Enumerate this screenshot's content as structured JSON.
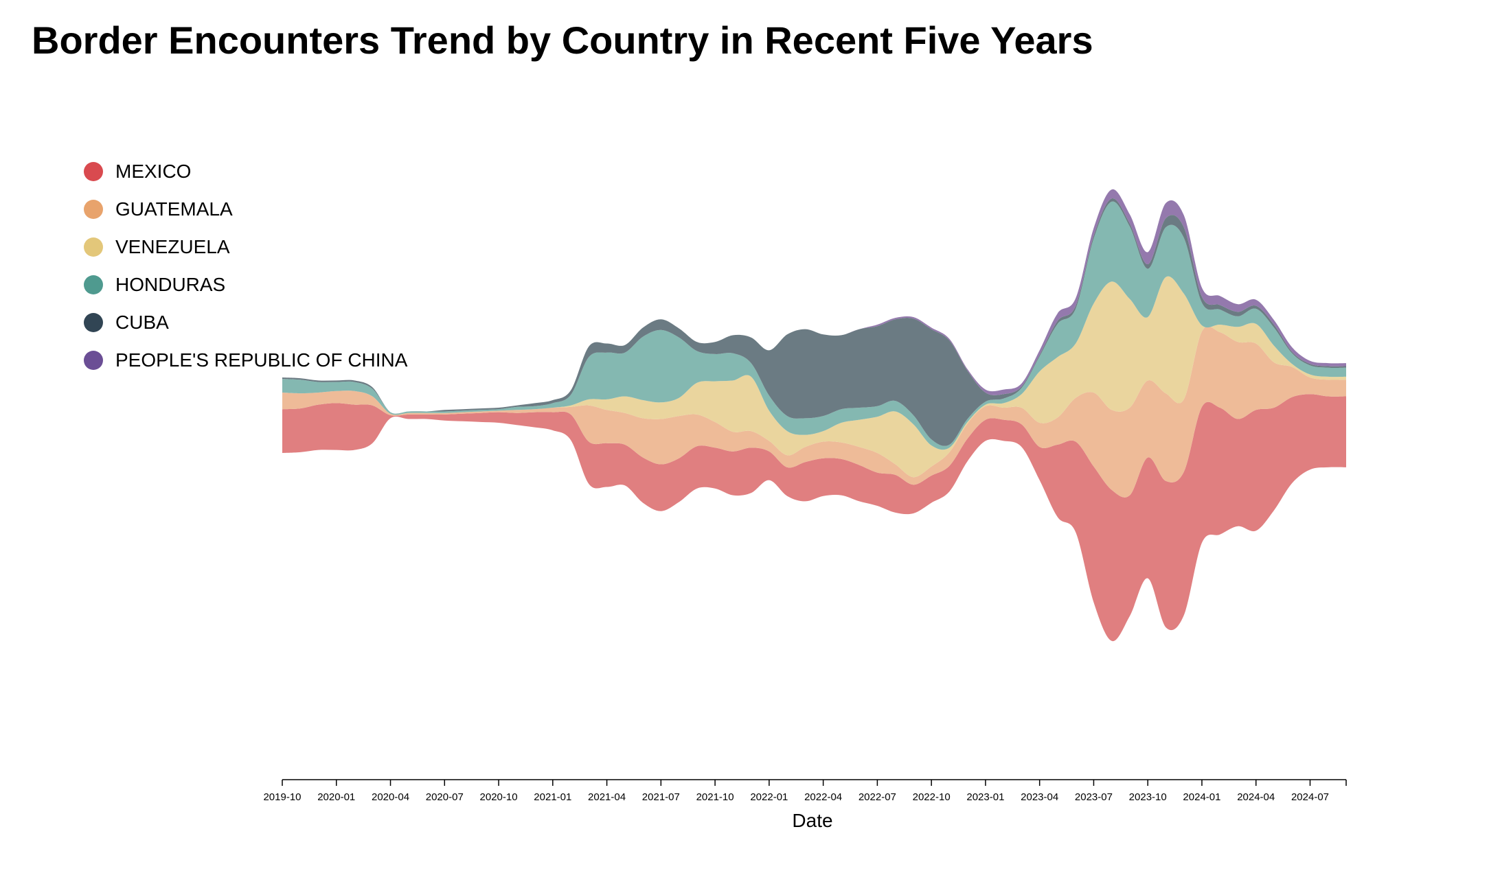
{
  "chart_data": {
    "type": "area",
    "subtype": "streamgraph",
    "title": "Border Encounters Trend by Country in Recent Five Years",
    "xlabel": "Date",
    "ylabel": "",
    "legend_position": "left",
    "grid": false,
    "x": [
      "2019-10",
      "2019-11",
      "2019-12",
      "2020-01",
      "2020-02",
      "2020-03",
      "2020-04",
      "2020-05",
      "2020-06",
      "2020-07",
      "2020-08",
      "2020-09",
      "2020-10",
      "2020-11",
      "2020-12",
      "2021-01",
      "2021-02",
      "2021-03",
      "2021-04",
      "2021-05",
      "2021-06",
      "2021-07",
      "2021-08",
      "2021-09",
      "2021-10",
      "2021-11",
      "2021-12",
      "2022-01",
      "2022-02",
      "2022-03",
      "2022-04",
      "2022-05",
      "2022-06",
      "2022-07",
      "2022-08",
      "2022-09",
      "2022-10",
      "2022-11",
      "2022-12",
      "2023-01",
      "2023-02",
      "2023-03",
      "2023-04",
      "2023-05",
      "2023-06",
      "2023-07",
      "2023-08",
      "2023-09",
      "2023-10",
      "2023-11",
      "2023-12",
      "2024-01",
      "2024-02",
      "2024-03",
      "2024-04",
      "2024-05",
      "2024-06",
      "2024-07",
      "2024-08",
      "2024-09"
    ],
    "x_ticks": [
      "2019-10",
      "2020-01",
      "2020-04",
      "2020-07",
      "2020-10",
      "2021-01",
      "2021-04",
      "2021-07",
      "2021-10",
      "2022-01",
      "2022-04",
      "2022-07",
      "2022-10",
      "2023-01",
      "2023-04",
      "2023-07",
      "2023-10",
      "2024-01",
      "2024-04",
      "2024-07"
    ],
    "series": [
      {
        "name": "MEXICO",
        "color": "#e07f80",
        "values": [
          29,
          29,
          30,
          31,
          30,
          25,
          2,
          3,
          3,
          4,
          5,
          6,
          7,
          8,
          10,
          12,
          17,
          28,
          29,
          27,
          30,
          31,
          29,
          28,
          27,
          29,
          30,
          19,
          19,
          26,
          25,
          24,
          24,
          22,
          25,
          19,
          18,
          17,
          15,
          14,
          14,
          15,
          22,
          48,
          60,
          90,
          100,
          80,
          80,
          97,
          95,
          90,
          84,
          71,
          80,
          68,
          57,
          50,
          47,
          47
        ]
      },
      {
        "name": "GUATEMALA",
        "color": "#eebb98",
        "values": [
          11,
          10,
          8,
          8,
          9,
          6,
          1,
          1,
          1,
          1,
          1,
          1,
          1,
          2,
          2,
          3,
          5,
          24,
          22,
          21,
          26,
          30,
          28,
          21,
          17,
          13,
          11,
          7,
          8,
          10,
          11,
          11,
          12,
          13,
          7,
          5,
          6,
          9,
          10,
          9,
          8,
          11,
          16,
          18,
          29,
          49,
          53,
          58,
          51,
          58,
          48,
          50,
          50,
          51,
          44,
          30,
          20,
          11,
          11,
          11
        ]
      },
      {
        "name": "VENEZUELA",
        "color": "#ead59e",
        "values": [
          0,
          0,
          0,
          0,
          0,
          0,
          0,
          0,
          0,
          0,
          0,
          0,
          0,
          0,
          0,
          0,
          1,
          4,
          7,
          11,
          12,
          11,
          12,
          21,
          27,
          34,
          36,
          20,
          16,
          8,
          7,
          13,
          18,
          24,
          35,
          35,
          14,
          3,
          1,
          1,
          3,
          9,
          34,
          40,
          36,
          59,
          85,
          72,
          42,
          77,
          70,
          4,
          5,
          10,
          13,
          11,
          2,
          2,
          2,
          2
        ]
      },
      {
        "name": "HONDURAS",
        "color": "#84b8b1",
        "values": [
          9,
          9,
          7,
          6,
          6,
          5,
          1,
          1,
          1,
          1,
          1,
          1,
          1,
          2,
          2,
          3,
          7,
          28,
          31,
          29,
          42,
          48,
          40,
          21,
          18,
          18,
          9,
          10,
          10,
          11,
          10,
          9,
          8,
          7,
          7,
          6,
          4,
          2,
          2,
          2,
          3,
          4,
          10,
          22,
          23,
          43,
          53,
          48,
          32,
          33,
          37,
          15,
          10,
          7,
          10,
          12,
          7,
          6,
          6,
          6
        ]
      },
      {
        "name": "CUBA",
        "color": "#6b7b83",
        "values": [
          1,
          1,
          1,
          1,
          1,
          1,
          0,
          0,
          0,
          1,
          1,
          1,
          1,
          1,
          2,
          2,
          3,
          7,
          6,
          5,
          6,
          7,
          6,
          6,
          8,
          12,
          17,
          30,
          54,
          59,
          54,
          49,
          52,
          53,
          54,
          64,
          73,
          69,
          32,
          6,
          3,
          1,
          1,
          2,
          2,
          2,
          2,
          2,
          3,
          6,
          7,
          4,
          3,
          3,
          2,
          2,
          1,
          1,
          1,
          1
        ]
      },
      {
        "name": "PEOPLE'S REPUBLIC OF CHINA",
        "color": "#9479ad",
        "values": [
          0,
          0,
          0,
          0,
          0,
          0,
          0,
          0,
          0,
          0,
          0,
          0,
          0,
          0,
          0,
          0,
          0,
          0,
          0,
          0,
          0,
          0,
          0,
          0,
          0,
          0,
          0,
          0,
          0,
          0,
          0,
          0,
          0,
          1,
          1,
          1,
          1,
          1,
          1,
          2,
          3,
          2,
          3,
          5,
          5,
          5,
          6,
          6,
          8,
          10,
          8,
          6,
          6,
          5,
          4,
          3,
          3,
          2,
          2,
          2
        ]
      }
    ]
  },
  "legend": {
    "items": [
      {
        "label": "MEXICO",
        "color": "#d94a4f"
      },
      {
        "label": "GUATEMALA",
        "color": "#e8a36c"
      },
      {
        "label": "VENEZUELA",
        "color": "#e3c77a"
      },
      {
        "label": "HONDURAS",
        "color": "#4f9a8f"
      },
      {
        "label": "CUBA",
        "color": "#314554"
      },
      {
        "label": "PEOPLE'S REPUBLIC OF CHINA",
        "color": "#6b4e95"
      }
    ]
  }
}
